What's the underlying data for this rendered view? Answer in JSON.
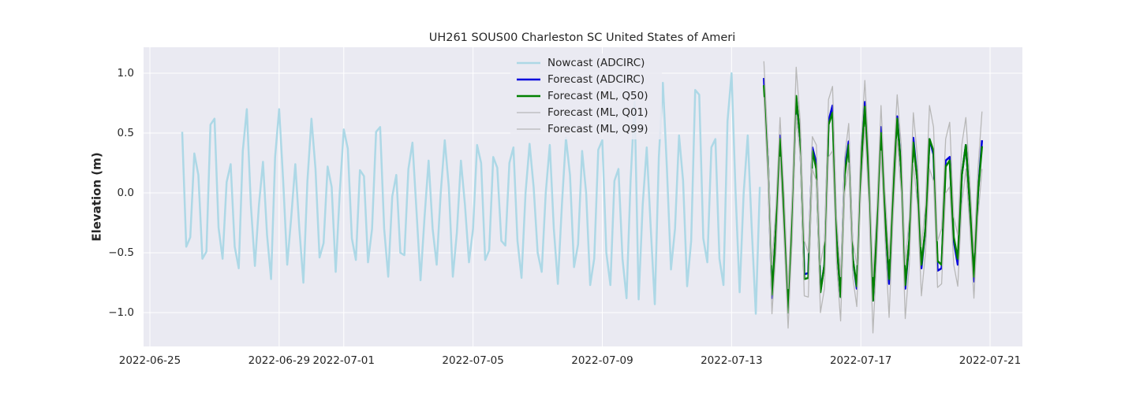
{
  "chart_data": {
    "type": "line",
    "title": "UH261 SOUS00 Charleston SC United States of Ameri",
    "ylabel": "Elevation (m)",
    "xlim": [
      "2022-06-24T19:19",
      "2022-07-22T00:00"
    ],
    "xticks": [
      "2022-06-25",
      "2022-06-29",
      "2022-07-01",
      "2022-07-05",
      "2022-07-09",
      "2022-07-13",
      "2022-07-17",
      "2022-07-21"
    ],
    "ylim": [
      -1.283,
      1.217
    ],
    "yticks": [
      {
        "value": -1.0,
        "label": "−1.0"
      },
      {
        "value": -0.5,
        "label": "−0.5"
      },
      {
        "value": 0.0,
        "label": "0.0"
      },
      {
        "value": 0.5,
        "label": "0.5"
      },
      {
        "value": 1.0,
        "label": "1.0"
      }
    ],
    "grid": true,
    "legend": "upper center",
    "series": [
      {
        "name": "Nowcast (ADCIRC)",
        "color": "#add8e6",
        "linewidth": 2.5,
        "x": [
          "2022-06-26T00:00",
          "2022-06-26T03:00",
          "2022-06-26T06:00",
          "2022-06-26T09:00",
          "2022-06-26T12:00",
          "2022-06-26T15:00",
          "2022-06-26T18:00",
          "2022-06-26T21:00",
          "2022-06-27T00:00",
          "2022-06-27T03:00",
          "2022-06-27T06:00",
          "2022-06-27T09:00",
          "2022-06-27T12:00",
          "2022-06-27T15:00",
          "2022-06-27T18:00",
          "2022-06-27T21:00",
          "2022-06-28T00:00",
          "2022-06-28T03:00",
          "2022-06-28T06:00",
          "2022-06-28T09:00",
          "2022-06-28T12:00",
          "2022-06-28T15:00",
          "2022-06-28T18:00",
          "2022-06-28T21:00",
          "2022-06-29T00:00",
          "2022-06-29T03:00",
          "2022-06-29T06:00",
          "2022-06-29T09:00",
          "2022-06-29T12:00",
          "2022-06-29T15:00",
          "2022-06-29T18:00",
          "2022-06-29T21:00",
          "2022-06-30T00:00",
          "2022-06-30T03:00",
          "2022-06-30T06:00",
          "2022-06-30T09:00",
          "2022-06-30T12:00",
          "2022-06-30T15:00",
          "2022-06-30T18:00",
          "2022-06-30T21:00",
          "2022-07-01T00:00",
          "2022-07-01T03:00",
          "2022-07-01T06:00",
          "2022-07-01T09:00",
          "2022-07-01T12:00",
          "2022-07-01T15:00",
          "2022-07-01T18:00",
          "2022-07-01T21:00",
          "2022-07-02T00:00",
          "2022-07-02T03:00",
          "2022-07-02T06:00",
          "2022-07-02T09:00",
          "2022-07-02T12:00",
          "2022-07-02T15:00",
          "2022-07-02T18:00",
          "2022-07-02T21:00",
          "2022-07-03T00:00",
          "2022-07-03T03:00",
          "2022-07-03T06:00",
          "2022-07-03T09:00",
          "2022-07-03T12:00",
          "2022-07-03T15:00",
          "2022-07-03T18:00",
          "2022-07-03T21:00",
          "2022-07-04T00:00",
          "2022-07-04T03:00",
          "2022-07-04T06:00",
          "2022-07-04T09:00",
          "2022-07-04T12:00",
          "2022-07-04T15:00",
          "2022-07-04T18:00",
          "2022-07-04T21:00",
          "2022-07-05T00:00",
          "2022-07-05T03:00",
          "2022-07-05T06:00",
          "2022-07-05T09:00",
          "2022-07-05T12:00",
          "2022-07-05T15:00",
          "2022-07-05T18:00",
          "2022-07-05T21:00",
          "2022-07-06T00:00",
          "2022-07-06T03:00",
          "2022-07-06T06:00",
          "2022-07-06T09:00",
          "2022-07-06T12:00",
          "2022-07-06T15:00",
          "2022-07-06T18:00",
          "2022-07-06T21:00",
          "2022-07-07T00:00",
          "2022-07-07T03:00",
          "2022-07-07T06:00",
          "2022-07-07T09:00",
          "2022-07-07T12:00",
          "2022-07-07T15:00",
          "2022-07-07T18:00",
          "2022-07-07T21:00",
          "2022-07-08T00:00",
          "2022-07-08T03:00",
          "2022-07-08T06:00",
          "2022-07-08T09:00",
          "2022-07-08T12:00",
          "2022-07-08T15:00",
          "2022-07-08T18:00",
          "2022-07-08T21:00",
          "2022-07-09T00:00",
          "2022-07-09T03:00",
          "2022-07-09T06:00",
          "2022-07-09T09:00",
          "2022-07-09T12:00",
          "2022-07-09T15:00",
          "2022-07-09T18:00",
          "2022-07-09T21:00",
          "2022-07-10T00:00",
          "2022-07-10T03:00",
          "2022-07-10T06:00",
          "2022-07-10T09:00",
          "2022-07-10T12:00",
          "2022-07-10T15:00",
          "2022-07-10T18:00",
          "2022-07-10T21:00",
          "2022-07-11T00:00",
          "2022-07-11T03:00",
          "2022-07-11T06:00",
          "2022-07-11T09:00",
          "2022-07-11T12:00",
          "2022-07-11T15:00",
          "2022-07-11T18:00",
          "2022-07-11T21:00",
          "2022-07-12T00:00",
          "2022-07-12T03:00",
          "2022-07-12T06:00",
          "2022-07-12T09:00",
          "2022-07-12T12:00",
          "2022-07-12T15:00",
          "2022-07-12T18:00",
          "2022-07-12T21:00",
          "2022-07-13T00:00",
          "2022-07-13T03:00",
          "2022-07-13T06:00",
          "2022-07-13T09:00",
          "2022-07-13T12:00",
          "2022-07-13T15:00",
          "2022-07-13T18:00",
          "2022-07-13T21:00"
        ],
        "values": [
          0.51,
          -0.45,
          -0.37,
          0.33,
          0.15,
          -0.55,
          -0.49,
          0.57,
          0.62,
          -0.29,
          -0.55,
          0.09,
          0.24,
          -0.45,
          -0.63,
          0.35,
          0.7,
          -0.1,
          -0.61,
          -0.1,
          0.26,
          -0.35,
          -0.72,
          0.3,
          0.7,
          0.1,
          -0.6,
          -0.2,
          0.24,
          -0.3,
          -0.75,
          0.1,
          0.62,
          0.2,
          -0.54,
          -0.42,
          0.22,
          0.05,
          -0.66,
          0.0,
          0.53,
          0.37,
          -0.38,
          -0.56,
          0.19,
          0.14,
          -0.58,
          -0.3,
          0.51,
          0.55,
          -0.3,
          -0.7,
          -0.03,
          0.15,
          -0.5,
          -0.52,
          0.2,
          0.42,
          -0.15,
          -0.73,
          -0.2,
          0.27,
          -0.3,
          -0.6,
          0.0,
          0.44,
          0.05,
          -0.7,
          -0.33,
          0.27,
          -0.1,
          -0.58,
          -0.3,
          0.4,
          0.25,
          -0.56,
          -0.48,
          0.3,
          0.21,
          -0.4,
          -0.44,
          0.25,
          0.38,
          -0.4,
          -0.71,
          0.0,
          0.41,
          0.05,
          -0.5,
          -0.66,
          0.0,
          0.4,
          -0.3,
          -0.76,
          -0.1,
          0.46,
          0.15,
          -0.62,
          -0.43,
          0.35,
          0.0,
          -0.77,
          -0.55,
          0.36,
          0.44,
          -0.5,
          -0.77,
          0.1,
          0.2,
          -0.55,
          -0.88,
          0.1,
          0.76,
          -0.89,
          -0.1,
          0.38,
          -0.3,
          -0.93,
          0.3,
          0.92,
          0.2,
          -0.64,
          -0.3,
          0.48,
          0.1,
          -0.78,
          -0.4,
          0.86,
          0.82,
          -0.38,
          -0.58,
          0.38,
          0.45,
          -0.55,
          -0.77,
          0.6,
          1.0,
          0.0,
          -0.83,
          0.0,
          0.48,
          -0.3,
          -1.01,
          0.05
        ]
      },
      {
        "name": "Forecast (ADCIRC)",
        "color": "#0000dd",
        "linewidth": 2.5,
        "x": [
          "2022-07-14T00:00",
          "2022-07-14T03:00",
          "2022-07-14T06:00",
          "2022-07-14T09:00",
          "2022-07-14T12:00",
          "2022-07-14T15:00",
          "2022-07-14T18:00",
          "2022-07-14T21:00",
          "2022-07-15T00:00",
          "2022-07-15T03:00",
          "2022-07-15T06:00",
          "2022-07-15T09:00",
          "2022-07-15T12:00",
          "2022-07-15T15:00",
          "2022-07-15T18:00",
          "2022-07-15T21:00",
          "2022-07-16T00:00",
          "2022-07-16T03:00",
          "2022-07-16T06:00",
          "2022-07-16T09:00",
          "2022-07-16T12:00",
          "2022-07-16T15:00",
          "2022-07-16T18:00",
          "2022-07-16T21:00",
          "2022-07-17T00:00",
          "2022-07-17T03:00",
          "2022-07-17T06:00",
          "2022-07-17T09:00",
          "2022-07-17T12:00",
          "2022-07-17T15:00",
          "2022-07-17T18:00",
          "2022-07-17T21:00",
          "2022-07-18T00:00",
          "2022-07-18T03:00",
          "2022-07-18T06:00",
          "2022-07-18T09:00",
          "2022-07-18T12:00",
          "2022-07-18T15:00",
          "2022-07-18T18:00",
          "2022-07-18T21:00",
          "2022-07-19T00:00",
          "2022-07-19T03:00",
          "2022-07-19T06:00",
          "2022-07-19T09:00",
          "2022-07-19T12:00",
          "2022-07-19T15:00",
          "2022-07-19T18:00",
          "2022-07-19T21:00",
          "2022-07-20T00:00",
          "2022-07-20T03:00",
          "2022-07-20T06:00",
          "2022-07-20T09:00",
          "2022-07-20T12:00",
          "2022-07-20T15:00",
          "2022-07-20T18:00"
        ],
        "values": [
          0.96,
          0.3,
          -0.88,
          -0.3,
          0.48,
          -0.2,
          -1.0,
          -0.2,
          0.8,
          0.45,
          -0.68,
          -0.67,
          0.38,
          0.25,
          -0.82,
          -0.6,
          0.6,
          0.73,
          -0.4,
          -0.87,
          0.2,
          0.43,
          -0.55,
          -0.8,
          0.2,
          0.76,
          0.1,
          -0.9,
          -0.3,
          0.55,
          -0.2,
          -0.76,
          0.0,
          0.64,
          0.2,
          -0.8,
          -0.4,
          0.46,
          0.1,
          -0.63,
          -0.3,
          0.45,
          0.32,
          -0.65,
          -0.63,
          0.27,
          0.3,
          -0.4,
          -0.6,
          0.15,
          0.4,
          -0.1,
          -0.74,
          0.0,
          0.44
        ]
      },
      {
        "name": "Forecast (ML, Q50)",
        "color": "#008000",
        "linewidth": 2.5,
        "x": [
          "2022-07-14T00:00",
          "2022-07-14T03:00",
          "2022-07-14T06:00",
          "2022-07-14T09:00",
          "2022-07-14T12:00",
          "2022-07-14T15:00",
          "2022-07-14T18:00",
          "2022-07-14T21:00",
          "2022-07-15T00:00",
          "2022-07-15T03:00",
          "2022-07-15T06:00",
          "2022-07-15T09:00",
          "2022-07-15T12:00",
          "2022-07-15T15:00",
          "2022-07-15T18:00",
          "2022-07-15T21:00",
          "2022-07-16T00:00",
          "2022-07-16T03:00",
          "2022-07-16T06:00",
          "2022-07-16T09:00",
          "2022-07-16T12:00",
          "2022-07-16T15:00",
          "2022-07-16T18:00",
          "2022-07-16T21:00",
          "2022-07-17T00:00",
          "2022-07-17T03:00",
          "2022-07-17T06:00",
          "2022-07-17T09:00",
          "2022-07-17T12:00",
          "2022-07-17T15:00",
          "2022-07-17T18:00",
          "2022-07-17T21:00",
          "2022-07-18T00:00",
          "2022-07-18T03:00",
          "2022-07-18T06:00",
          "2022-07-18T09:00",
          "2022-07-18T12:00",
          "2022-07-18T15:00",
          "2022-07-18T18:00",
          "2022-07-18T21:00",
          "2022-07-19T00:00",
          "2022-07-19T03:00",
          "2022-07-19T06:00",
          "2022-07-19T09:00",
          "2022-07-19T12:00",
          "2022-07-19T15:00",
          "2022-07-19T18:00",
          "2022-07-19T21:00",
          "2022-07-20T00:00",
          "2022-07-20T03:00",
          "2022-07-20T06:00",
          "2022-07-20T09:00",
          "2022-07-20T12:00",
          "2022-07-20T15:00",
          "2022-07-20T18:00"
        ],
        "values": [
          0.9,
          0.3,
          -0.85,
          -0.3,
          0.45,
          -0.2,
          -1.0,
          -0.2,
          0.81,
          0.45,
          -0.72,
          -0.71,
          0.35,
          0.2,
          -0.83,
          -0.6,
          0.57,
          0.67,
          -0.4,
          -0.87,
          0.15,
          0.4,
          -0.55,
          -0.78,
          0.2,
          0.72,
          0.1,
          -0.9,
          -0.3,
          0.5,
          -0.2,
          -0.72,
          0.0,
          0.62,
          0.2,
          -0.77,
          -0.4,
          0.42,
          0.1,
          -0.6,
          -0.3,
          0.45,
          0.35,
          -0.57,
          -0.6,
          0.22,
          0.27,
          -0.37,
          -0.55,
          0.15,
          0.4,
          -0.1,
          -0.7,
          0.0,
          0.39
        ]
      },
      {
        "name": "Forecast (ML, Q01)",
        "color": "#b8b8b8",
        "linewidth": 1.3,
        "x": [
          "2022-07-14T00:00",
          "2022-07-14T03:00",
          "2022-07-14T06:00",
          "2022-07-14T09:00",
          "2022-07-14T12:00",
          "2022-07-14T15:00",
          "2022-07-14T18:00",
          "2022-07-14T21:00",
          "2022-07-15T00:00",
          "2022-07-15T03:00",
          "2022-07-15T06:00",
          "2022-07-15T09:00",
          "2022-07-15T12:00",
          "2022-07-15T15:00",
          "2022-07-15T18:00",
          "2022-07-15T21:00",
          "2022-07-16T00:00",
          "2022-07-16T03:00",
          "2022-07-16T06:00",
          "2022-07-16T09:00",
          "2022-07-16T12:00",
          "2022-07-16T15:00",
          "2022-07-16T18:00",
          "2022-07-16T21:00",
          "2022-07-17T00:00",
          "2022-07-17T03:00",
          "2022-07-17T06:00",
          "2022-07-17T09:00",
          "2022-07-17T12:00",
          "2022-07-17T15:00",
          "2022-07-17T18:00",
          "2022-07-17T21:00",
          "2022-07-18T00:00",
          "2022-07-18T03:00",
          "2022-07-18T06:00",
          "2022-07-18T09:00",
          "2022-07-18T12:00",
          "2022-07-18T15:00",
          "2022-07-18T18:00",
          "2022-07-18T21:00",
          "2022-07-19T00:00",
          "2022-07-19T03:00",
          "2022-07-19T06:00",
          "2022-07-19T09:00",
          "2022-07-19T12:00",
          "2022-07-19T15:00",
          "2022-07-19T18:00",
          "2022-07-19T21:00",
          "2022-07-20T00:00",
          "2022-07-20T03:00",
          "2022-07-20T06:00",
          "2022-07-20T09:00",
          "2022-07-20T12:00",
          "2022-07-20T15:00",
          "2022-07-20T18:00"
        ],
        "values": [
          0.8,
          0.1,
          -1.01,
          -0.5,
          0.3,
          -0.4,
          -1.13,
          -0.4,
          0.65,
          0.3,
          -0.86,
          -0.87,
          0.2,
          0.1,
          -1.0,
          -0.8,
          0.3,
          0.35,
          -0.6,
          -1.07,
          0.0,
          0.25,
          -0.7,
          -0.95,
          0.0,
          0.55,
          -0.1,
          -1.17,
          -0.5,
          0.35,
          -0.4,
          -1.04,
          -0.2,
          0.45,
          0.0,
          -1.05,
          -0.6,
          0.25,
          -0.1,
          -0.86,
          -0.5,
          0.2,
          0.1,
          -0.79,
          -0.76,
          0.0,
          0.05,
          -0.6,
          -0.78,
          -0.1,
          0.2,
          -0.3,
          -0.88,
          -0.2,
          0.2
        ]
      },
      {
        "name": "Forecast (ML, Q99)",
        "color": "#b8b8b8",
        "linewidth": 1.3,
        "x": [
          "2022-07-14T00:00",
          "2022-07-14T03:00",
          "2022-07-14T06:00",
          "2022-07-14T09:00",
          "2022-07-14T12:00",
          "2022-07-14T15:00",
          "2022-07-14T18:00",
          "2022-07-14T21:00",
          "2022-07-15T00:00",
          "2022-07-15T03:00",
          "2022-07-15T06:00",
          "2022-07-15T09:00",
          "2022-07-15T12:00",
          "2022-07-15T15:00",
          "2022-07-15T18:00",
          "2022-07-15T21:00",
          "2022-07-16T00:00",
          "2022-07-16T03:00",
          "2022-07-16T06:00",
          "2022-07-16T09:00",
          "2022-07-16T12:00",
          "2022-07-16T15:00",
          "2022-07-16T18:00",
          "2022-07-16T21:00",
          "2022-07-17T00:00",
          "2022-07-17T03:00",
          "2022-07-17T06:00",
          "2022-07-17T09:00",
          "2022-07-17T12:00",
          "2022-07-17T15:00",
          "2022-07-17T18:00",
          "2022-07-17T21:00",
          "2022-07-18T00:00",
          "2022-07-18T03:00",
          "2022-07-18T06:00",
          "2022-07-18T09:00",
          "2022-07-18T12:00",
          "2022-07-18T15:00",
          "2022-07-18T18:00",
          "2022-07-18T21:00",
          "2022-07-19T00:00",
          "2022-07-19T03:00",
          "2022-07-19T06:00",
          "2022-07-19T09:00",
          "2022-07-19T12:00",
          "2022-07-19T15:00",
          "2022-07-19T18:00",
          "2022-07-19T21:00",
          "2022-07-20T00:00",
          "2022-07-20T03:00",
          "2022-07-20T06:00",
          "2022-07-20T09:00",
          "2022-07-20T12:00",
          "2022-07-20T15:00",
          "2022-07-20T18:00"
        ],
        "values": [
          1.1,
          0.4,
          -0.6,
          -0.1,
          0.63,
          0.0,
          -0.8,
          0.0,
          1.05,
          0.6,
          -0.4,
          -0.5,
          0.47,
          0.4,
          -0.6,
          -0.4,
          0.78,
          0.89,
          -0.2,
          -0.7,
          0.3,
          0.58,
          -0.4,
          -0.6,
          0.4,
          0.94,
          0.3,
          -0.7,
          -0.1,
          0.73,
          0.0,
          -0.55,
          0.2,
          0.82,
          0.4,
          -0.6,
          -0.2,
          0.67,
          0.3,
          -0.45,
          -0.1,
          0.73,
          0.55,
          -0.4,
          -0.3,
          0.45,
          0.59,
          -0.2,
          -0.35,
          0.4,
          0.63,
          0.1,
          -0.5,
          0.2,
          0.68
        ]
      }
    ]
  }
}
